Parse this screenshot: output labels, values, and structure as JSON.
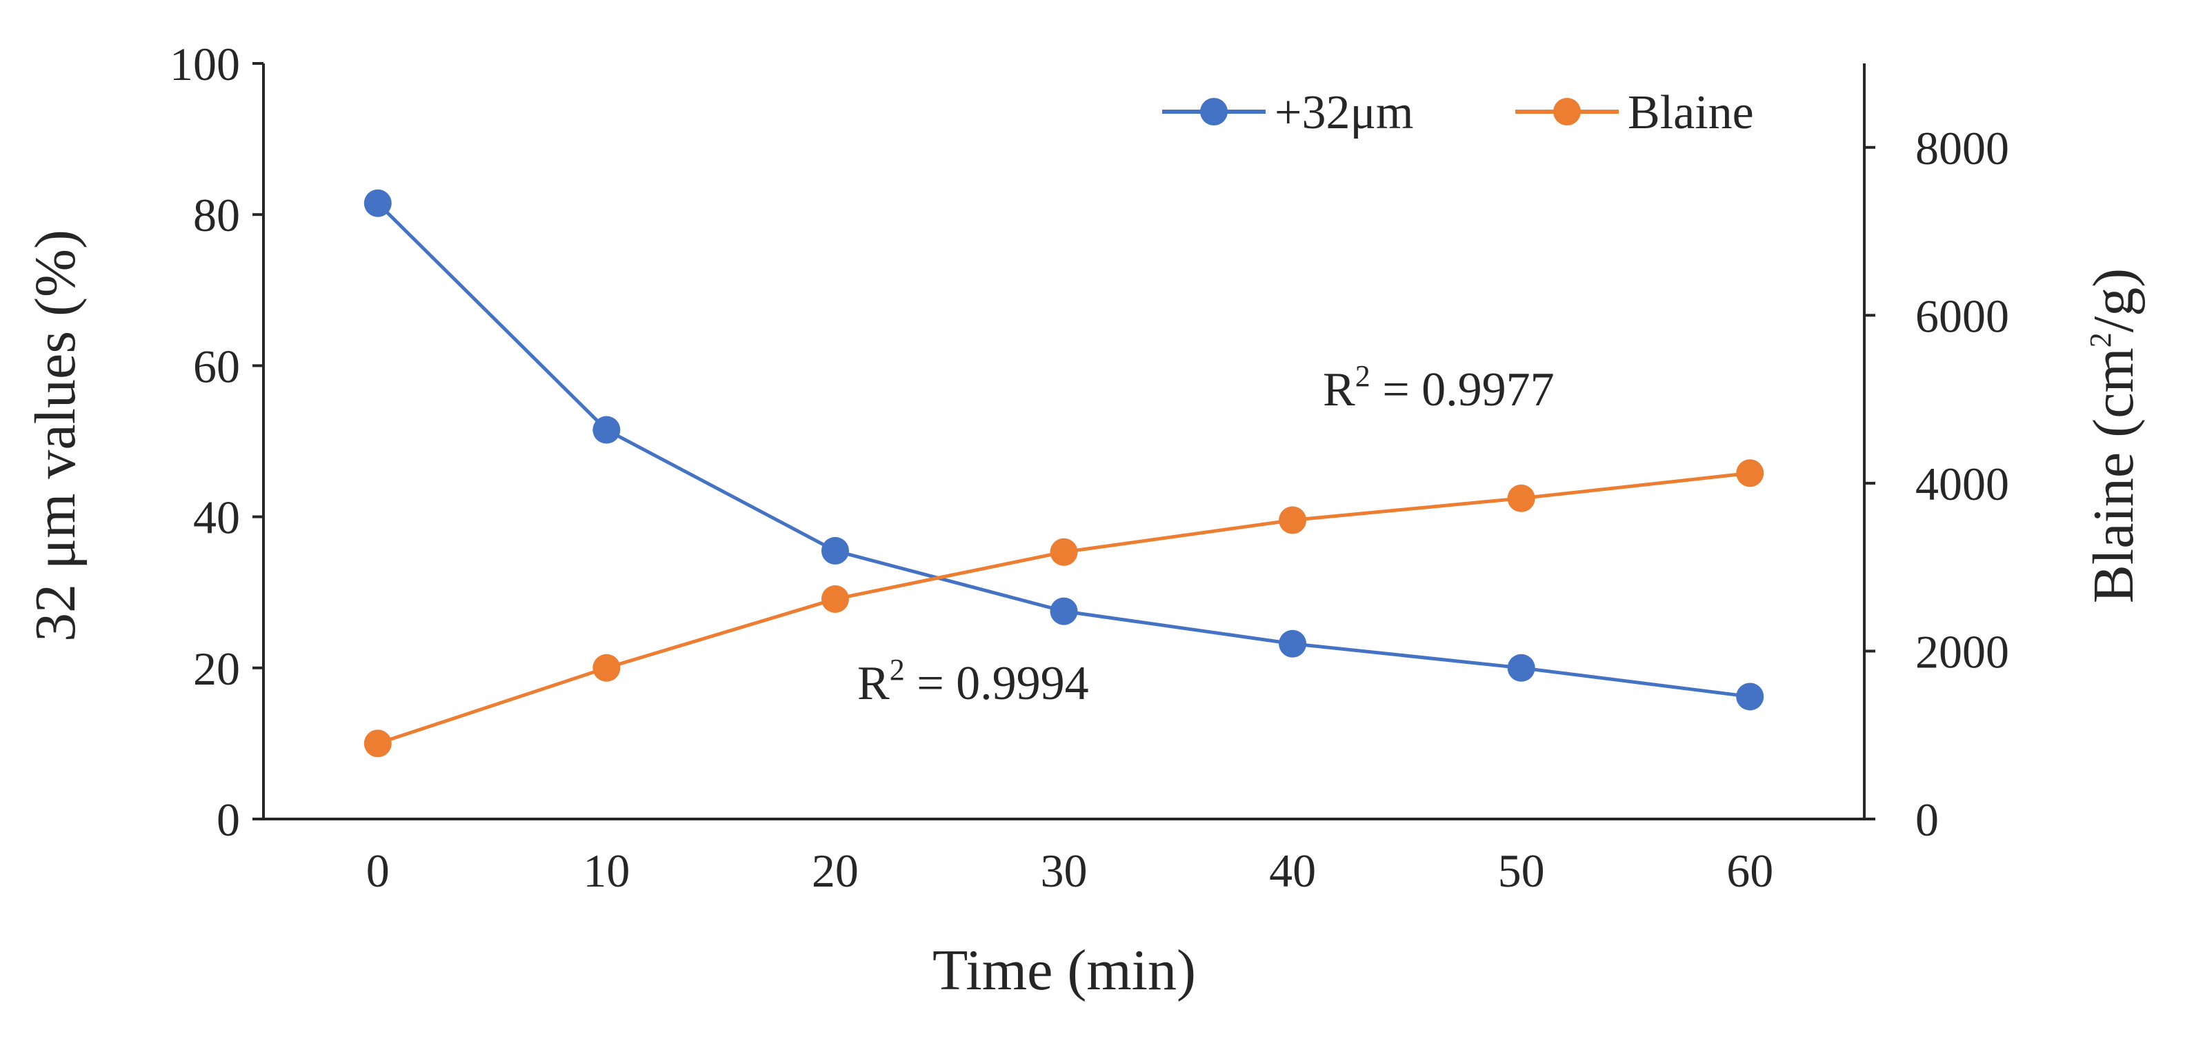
{
  "chart_data": {
    "type": "line",
    "title": "",
    "x": [
      0,
      10,
      20,
      30,
      40,
      50,
      60
    ],
    "xlabel": "Time (min)",
    "xlim": [
      -5,
      65
    ],
    "xticks": [
      "0",
      "10",
      "20",
      "30",
      "40",
      "50",
      "60"
    ],
    "y_left": {
      "label": "32 μm values (%)",
      "lim": [
        0,
        100
      ],
      "ticks": [
        "0",
        "20",
        "40",
        "60",
        "80",
        "100"
      ]
    },
    "y_right": {
      "label_prefix": "Blaine (cm",
      "label_sup": "2",
      "label_suffix": "/g)",
      "lim": [
        0,
        9000
      ],
      "ticks": [
        "0",
        "2000",
        "4000",
        "6000",
        "8000"
      ]
    },
    "series": [
      {
        "name": "+32μm",
        "axis": "left",
        "color": "#4472C4",
        "values": [
          81.5,
          51.5,
          35.5,
          27.5,
          23.2,
          20.0,
          16.2
        ]
      },
      {
        "name": "Blaine",
        "axis": "right",
        "color": "#ED7D31",
        "values": [
          900,
          1800,
          2620,
          3180,
          3560,
          3820,
          4120
        ]
      }
    ],
    "annotations": [
      {
        "base": "R",
        "sup": "2",
        "rest": " = 0.9977"
      },
      {
        "base": "R",
        "sup": "2",
        "rest": " = 0.9994"
      }
    ],
    "legend": "top-right",
    "grid": false
  }
}
